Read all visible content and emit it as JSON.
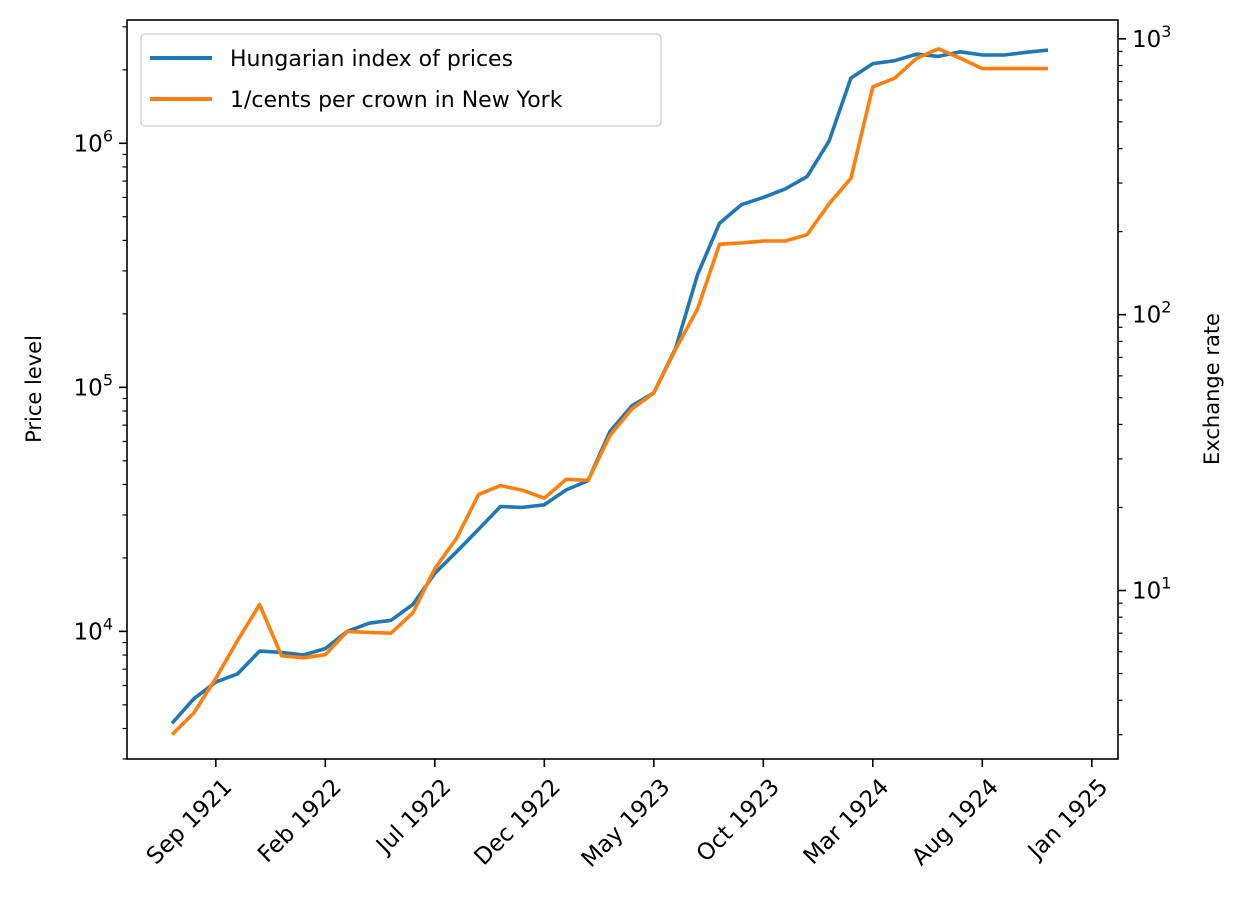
{
  "chart_data": {
    "type": "line",
    "title": "",
    "x_start": "1921-07",
    "x_tick_labels": [
      "Sep 1921",
      "Feb 1922",
      "Jul 1922",
      "Dec 1922",
      "May 1923",
      "Oct 1923",
      "Mar 1924",
      "Aug 1924",
      "Jan 1925"
    ],
    "y_left": {
      "label": "Price level",
      "scale": "log",
      "range": [
        3000,
        3200000
      ],
      "major_ticks": [
        {
          "value": 10000,
          "base": "10",
          "exp": "4"
        },
        {
          "value": 100000,
          "base": "10",
          "exp": "5"
        },
        {
          "value": 1000000,
          "base": "10",
          "exp": "6"
        }
      ]
    },
    "y_right": {
      "label": "Exchange rate",
      "scale": "log",
      "range": [
        2.45,
        1170
      ],
      "major_ticks": [
        {
          "value": 10,
          "base": "10",
          "exp": "1"
        },
        {
          "value": 100,
          "base": "10",
          "exp": "2"
        },
        {
          "value": 1000,
          "base": "10",
          "exp": "3"
        }
      ]
    },
    "legend": {
      "position": "top-left",
      "entries": [
        "Hungarian index of prices",
        "1/cents per crown in New York"
      ]
    },
    "grid": false,
    "series": [
      {
        "name": "Hungarian index of prices",
        "color": "#1f77b4",
        "axis": "left",
        "x": [
          "1921-07",
          "1921-08",
          "1921-09",
          "1921-10",
          "1921-11",
          "1921-12",
          "1922-01",
          "1922-02",
          "1922-03",
          "1922-04",
          "1922-05",
          "1922-06",
          "1922-07",
          "1922-08",
          "1922-09",
          "1922-10",
          "1922-11",
          "1922-12",
          "1923-01",
          "1923-02",
          "1923-03",
          "1923-04",
          "1923-05",
          "1923-06",
          "1923-07",
          "1923-08",
          "1923-09",
          "1923-10",
          "1923-11",
          "1923-12",
          "1924-01",
          "1924-02",
          "1924-03",
          "1924-04",
          "1924-05",
          "1924-06",
          "1924-07",
          "1924-08",
          "1924-09",
          "1924-10",
          "1924-11"
        ],
        "values": [
          4200,
          5300,
          6200,
          6700,
          8300,
          8200,
          8000,
          8500,
          10000,
          10800,
          11100,
          12900,
          17300,
          21200,
          26200,
          32500,
          32200,
          33000,
          38000,
          41500,
          66000,
          84000,
          95000,
          145000,
          290000,
          470000,
          560000,
          600000,
          650000,
          730000,
          1020000,
          1850000,
          2120000,
          2180000,
          2320000,
          2270000,
          2370000,
          2300000,
          2300000,
          2360000,
          2410000
        ]
      },
      {
        "name": "1/cents per crown in New York",
        "color": "#ff7f0e",
        "axis": "right",
        "x": [
          "1921-07",
          "1921-08",
          "1921-09",
          "1921-10",
          "1921-11",
          "1921-12",
          "1922-01",
          "1922-02",
          "1922-03",
          "1922-04",
          "1922-05",
          "1922-06",
          "1922-07",
          "1922-08",
          "1922-09",
          "1922-10",
          "1922-11",
          "1922-12",
          "1923-01",
          "1923-02",
          "1923-03",
          "1923-04",
          "1923-05",
          "1923-06",
          "1923-07",
          "1923-08",
          "1923-09",
          "1923-10",
          "1923-11",
          "1923-12",
          "1924-01",
          "1924-02",
          "1924-03",
          "1924-04",
          "1924-05",
          "1924-06",
          "1924-07",
          "1924-08",
          "1924-09",
          "1924-10",
          "1924-11"
        ],
        "values": [
          3.0,
          3.6,
          4.8,
          6.6,
          8.9,
          5.8,
          5.7,
          5.85,
          7.1,
          7.05,
          7.0,
          8.3,
          12.0,
          15.5,
          22.3,
          24.0,
          23.1,
          21.6,
          25.3,
          25.1,
          36.5,
          45.5,
          52.0,
          75.0,
          105.0,
          180.0,
          182.0,
          185.0,
          185.0,
          195.0,
          252.0,
          312.0,
          670.0,
          720.0,
          850.0,
          920.0,
          850.0,
          780.0,
          780.0,
          780.0,
          780.0
        ]
      }
    ]
  }
}
